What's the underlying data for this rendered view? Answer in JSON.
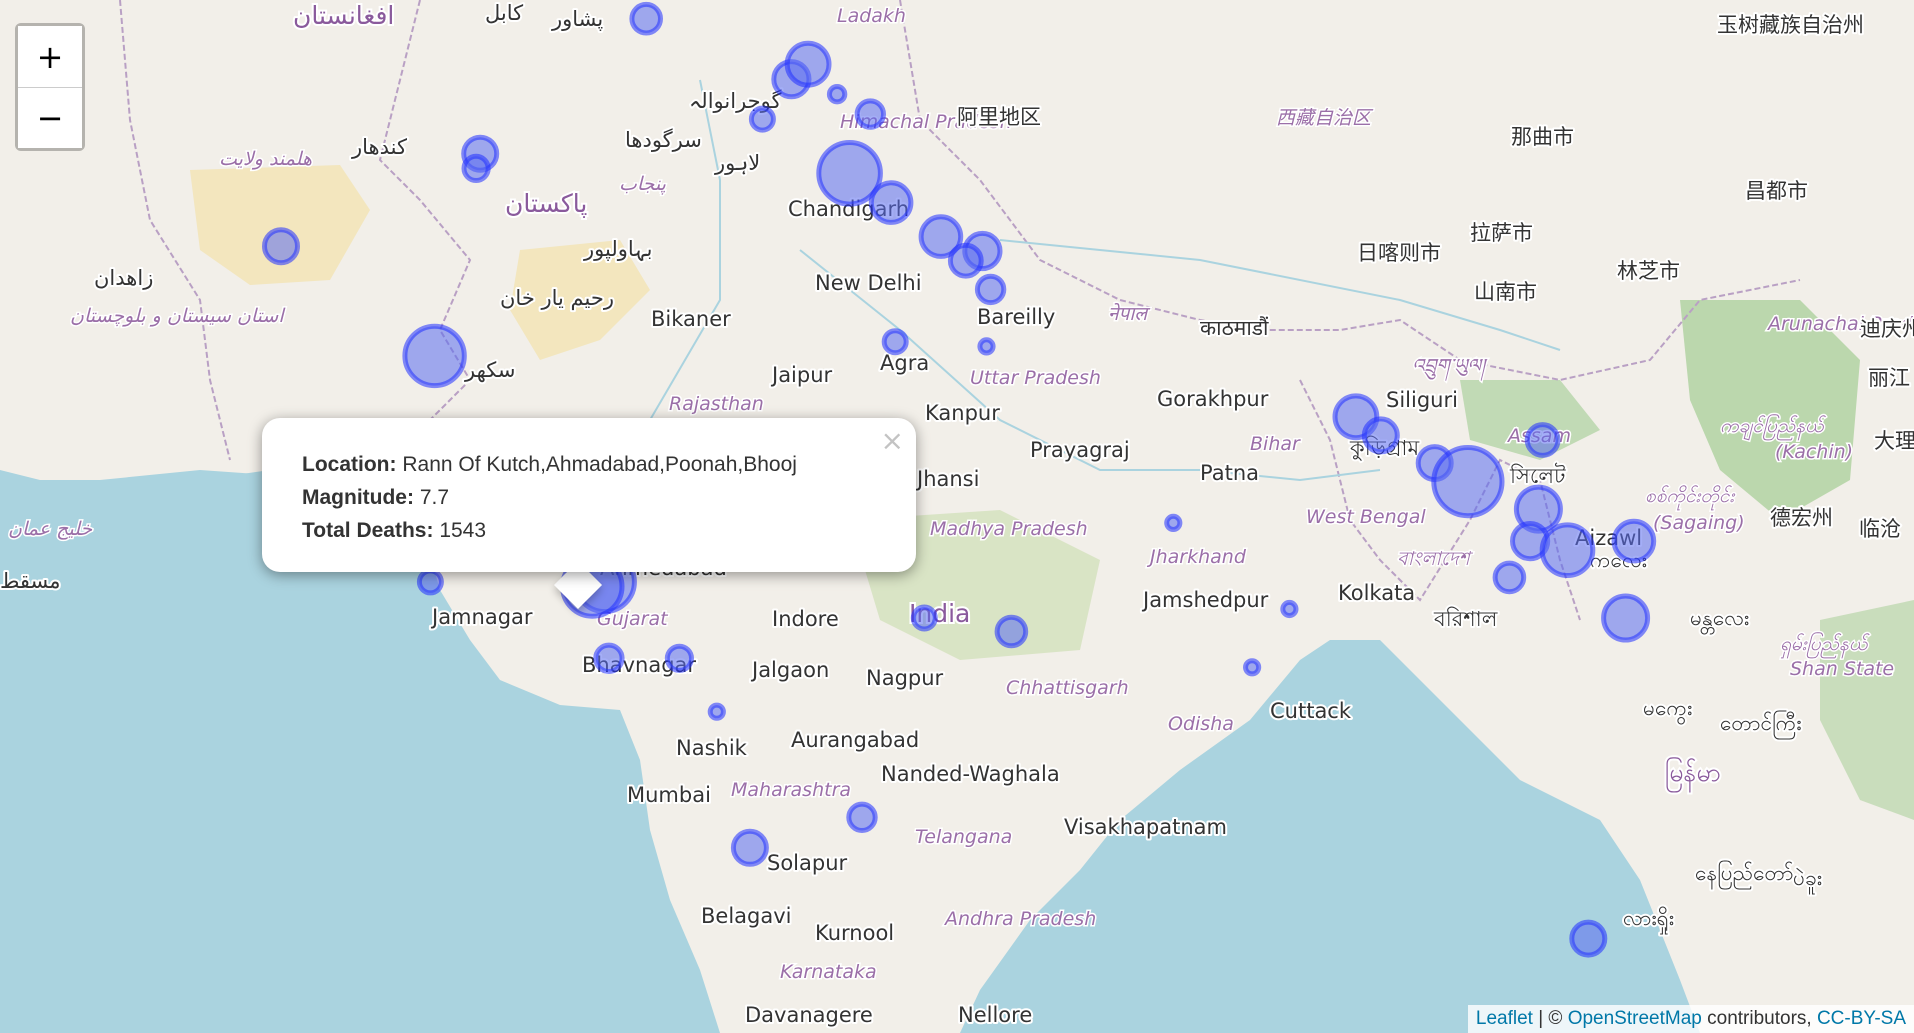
{
  "zoom": {
    "in_label": "+",
    "out_label": "−"
  },
  "popup": {
    "location_label": "Location:",
    "location": "Rann Of Kutch,Ahmadabad,Poonah,Bhooj",
    "magnitude_label": "Magnitude:",
    "magnitude": "7.7",
    "deaths_label": "Total Deaths:",
    "deaths": "1543",
    "close_label": "×"
  },
  "attribution": {
    "leaflet": "Leaflet",
    "separator": " | © ",
    "osm": "OpenStreetMap",
    "contributors": " contributors, ",
    "license": "CC-BY-SA"
  },
  "labels": {
    "chandigarh": "Chandigarh",
    "new_delhi": "New Delhi",
    "bikaner": "Bikaner",
    "jaipur": "Jaipur",
    "agra": "Agra",
    "bareilly": "Bareilly",
    "kanpur": "Kanpur",
    "prayagraj": "Prayagraj",
    "gorakhpur": "Gorakhpur",
    "patna": "Patna",
    "siliguri": "Siliguri",
    "kolkata": "Kolkata",
    "jamshedpur": "Jamshedpur",
    "cuttack": "Cuttack",
    "india": "India",
    "indore": "Indore",
    "jalgaon": "Jalgaon",
    "nagpur": "Nagpur",
    "ahmedabad": "Ahmedabad",
    "jamnagar": "Jamnagar",
    "bhavnagar": "Bhavnagar",
    "nashik": "Nashik",
    "aurangabad": "Aurangabad",
    "nanded": "Nanded-Waghala",
    "mumbai": "Mumbai",
    "solapur": "Solapur",
    "belagavi": "Belagavi",
    "kurnool": "Kurnool",
    "visakhapatnam": "Visakhapatnam",
    "davanagere": "Davanagere",
    "nellore": "Nellore",
    "jhansi": "Jhansi",
    "aizawl": "Aizawl",
    "rajasthan": "Rajasthan",
    "uttar_pradesh": "Uttar Pradesh",
    "madhya_pradesh": "Madhya Pradesh",
    "gujarat": "Gujarat",
    "maharashtra": "Maharashtra",
    "telangana": "Telangana",
    "andhra_pradesh": "Andhra Pradesh",
    "karnataka": "Karnataka",
    "chhattisgarh": "Chhattisgarh",
    "odisha": "Odisha",
    "jharkhand": "Jharkhand",
    "west_bengal": "West Bengal",
    "bihar": "Bihar",
    "himachal_pradesh": "Himachal Pradesh",
    "ladakh": "Ladakh",
    "arunachal_pradesh": "Arunachal Pradesh",
    "assam": "Assam",
    "kachin": "(Kachin)",
    "sagaing": "(Sagaing)",
    "shan_state": "Shan State",
    "pakistan": "پاکستان",
    "afghanistan": "افغانستان",
    "kabul": "کابل",
    "peshawar": "پشاور",
    "kandahar": "کندهار",
    "helmand": "هلمند ولایت",
    "zahedan": "زاهدان",
    "sistan": "استان سیستان و بلوچستان",
    "gujranwala": "گوجرانوالہ",
    "sargodha": "سرگودھا",
    "lahore": "لاہور",
    "punjab": "پنجاب",
    "bahawalpur": "بہاولپور",
    "rahim_yar_khan": "رحیم یار خان",
    "sukkur": "سکھر",
    "gulf_oman": "خلیج عمان",
    "muscat": "مسقط",
    "nepal": "नेपाल",
    "kathmandu": "काठमाडौं",
    "bangladesh": "বাংলাদেশ",
    "kurigram": "কুড়িগ্রাম",
    "barishal": "বরিশাল",
    "sylhet": "সিলেট",
    "bhutan": "འབྲུག་ཡུལ།",
    "ali": "阿里地区",
    "xizang": "西藏自治区",
    "nagqu": "那曲市",
    "qamdo": "昌都市",
    "lhasa": "拉萨市",
    "shigatse": "日喀则市",
    "shannan": "山南市",
    "nyingchi": "林芝市",
    "yushu": "玉树藏族自治州",
    "dehong": "德宏州",
    "lincang": "临沧",
    "diqing": "迪庆州",
    "lijiang": "丽江",
    "dali": "大理",
    "kachin_mm": "ကချင်ပြည်နယ်",
    "sagaing_mm": "စစ်ကိုင်းတိုင်း",
    "mandalay": "မန္တလေး",
    "monywa": "မုံရွာ",
    "shan_mm": "ရှမ်းပြည်နယ်",
    "magway": "မကွေး",
    "taunggyi": "တောင်ကြီး",
    "myanmar": "မြန်မာ",
    "naypyidaw": "နေပြည်တော်",
    "bago": "ပဲခူး",
    "kalay": "ကလေး",
    "lashio": "လားရှိုး"
  },
  "colors": {
    "marker": "#5a6cf0",
    "water": "#aad3df",
    "land": "#f2efe9",
    "forest": "#add19e",
    "desert": "#f3e3b3"
  },
  "markers": [
    {
      "lat": 36.6,
      "lon": 70.5,
      "mag": 6.8
    },
    {
      "lat": 35.2,
      "lon": 71.3,
      "mag": 6.3
    },
    {
      "lat": 32.5,
      "lon": 67.3,
      "mag": 6.5
    },
    {
      "lat": 32.2,
      "lon": 67.2,
      "mag": 6.1
    },
    {
      "lat": 30.6,
      "lon": 62.5,
      "mag": 6.5
    },
    {
      "lat": 33.2,
      "lon": 74.1,
      "mag": 6.0
    },
    {
      "lat": 34.0,
      "lon": 74.8,
      "mag": 6.6
    },
    {
      "lat": 34.3,
      "lon": 75.2,
      "mag": 6.9
    },
    {
      "lat": 33.7,
      "lon": 75.9,
      "mag": 5.7
    },
    {
      "lat": 33.3,
      "lon": 76.7,
      "mag": 6.2
    },
    {
      "lat": 32.1,
      "lon": 76.2,
      "mag": 7.8
    },
    {
      "lat": 31.5,
      "lon": 77.2,
      "mag": 6.8
    },
    {
      "lat": 30.8,
      "lon": 78.4,
      "mag": 6.8
    },
    {
      "lat": 30.5,
      "lon": 79.4,
      "mag": 6.6
    },
    {
      "lat": 30.3,
      "lon": 79.0,
      "mag": 6.4
    },
    {
      "lat": 29.7,
      "lon": 79.6,
      "mag": 6.2
    },
    {
      "lat": 28.6,
      "lon": 77.3,
      "mag": 6.0
    },
    {
      "lat": 28.5,
      "lon": 79.5,
      "mag": 5.6
    },
    {
      "lat": 28.3,
      "lon": 66.2,
      "mag": 7.7
    },
    {
      "lat": 26.6,
      "lon": 69.8,
      "mag": 5.9
    },
    {
      "lat": 25.4,
      "lon": 68.3,
      "mag": 6.2
    },
    {
      "lat": 23.4,
      "lon": 66.1,
      "mag": 6.0
    },
    {
      "lat": 23.4,
      "lon": 70.3,
      "mag": 7.7
    },
    {
      "lat": 23.3,
      "lon": 70.0,
      "mag": 7.7
    },
    {
      "lat": 21.7,
      "lon": 72.1,
      "mag": 6.1
    },
    {
      "lat": 21.7,
      "lon": 70.4,
      "mag": 6.2
    },
    {
      "lat": 20.5,
      "lon": 73.0,
      "mag": 5.6
    },
    {
      "lat": 17.4,
      "lon": 73.8,
      "mag": 6.5
    },
    {
      "lat": 18.1,
      "lon": 76.5,
      "mag": 6.2
    },
    {
      "lat": 22.3,
      "lon": 80.1,
      "mag": 6.3
    },
    {
      "lat": 22.6,
      "lon": 78.0,
      "mag": 6.0
    },
    {
      "lat": 24.7,
      "lon": 84.0,
      "mag": 5.6
    },
    {
      "lat": 22.8,
      "lon": 86.8,
      "mag": 5.6
    },
    {
      "lat": 21.5,
      "lon": 85.9,
      "mag": 5.6
    },
    {
      "lat": 27.0,
      "lon": 88.4,
      "mag": 6.9
    },
    {
      "lat": 26.6,
      "lon": 89.0,
      "mag": 6.5
    },
    {
      "lat": 26.0,
      "lon": 90.3,
      "mag": 6.5
    },
    {
      "lat": 25.6,
      "lon": 91.1,
      "mag": 8.1
    },
    {
      "lat": 26.5,
      "lon": 92.9,
      "mag": 6.4
    },
    {
      "lat": 25.0,
      "lon": 92.8,
      "mag": 7.0
    },
    {
      "lat": 24.3,
      "lon": 92.6,
      "mag": 6.6
    },
    {
      "lat": 24.1,
      "lon": 93.5,
      "mag": 7.3
    },
    {
      "lat": 23.5,
      "lon": 92.1,
      "mag": 6.3
    },
    {
      "lat": 24.3,
      "lon": 95.1,
      "mag": 6.8
    },
    {
      "lat": 22.6,
      "lon": 94.9,
      "mag": 7.0
    },
    {
      "lat": 15.3,
      "lon": 94.0,
      "mag": 6.5
    }
  ]
}
